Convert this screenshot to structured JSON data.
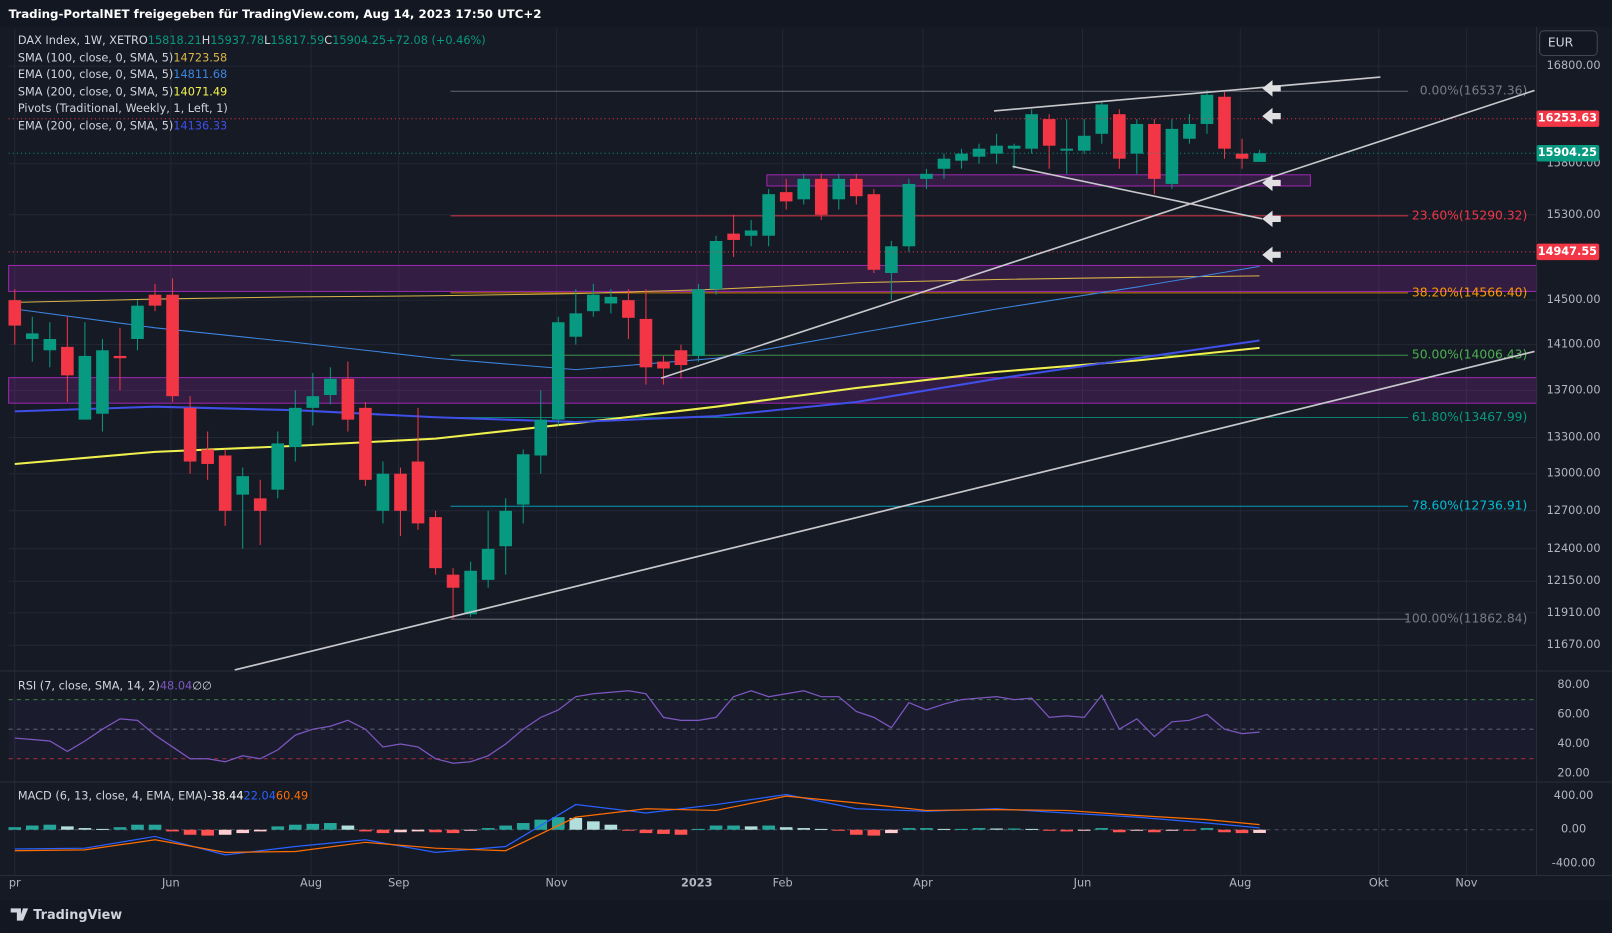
{
  "header": "Trading-PortalNET freigegeben für TradingView.com, Aug 14, 2023 17:50 UTC+2",
  "currency_button": "EUR",
  "footer_logo": "TradingView",
  "chart_data": [
    {
      "type": "candlestick",
      "symbol": "DAX Index, 1W, XETR",
      "ohlc_legend": [
        {
          "label": "O",
          "value": 15818.21
        },
        {
          "label": "H",
          "value": 15937.78
        },
        {
          "label": "L",
          "value": 15817.59
        },
        {
          "label": "C",
          "value": 15904.25
        }
      ],
      "change": "+72.08 (+0.46%)",
      "up_color": "#089981",
      "down_color": "#f23645",
      "log": true,
      "ylim": [
        11490,
        17200
      ],
      "yticks": [
        {
          "value": 16800,
          "label": "16800.00"
        },
        {
          "value": 15800,
          "label": "15800.00"
        },
        {
          "value": 15300,
          "label": "15300.00"
        },
        {
          "value": 14500,
          "label": "14500.00"
        },
        {
          "value": 14100,
          "label": "14100.00"
        },
        {
          "value": 13700,
          "label": "13700.00"
        },
        {
          "value": 13300,
          "label": "13300.00"
        },
        {
          "value": 13000,
          "label": "13000.00"
        },
        {
          "value": 12700,
          "label": "12700.00"
        },
        {
          "value": 12400,
          "label": "12400.00"
        },
        {
          "value": 12150,
          "label": "12150.00"
        },
        {
          "value": 11910,
          "label": "11910.00"
        },
        {
          "value": 11670,
          "label": "11670.00"
        }
      ],
      "xlim": [
        -0.35,
        86.8
      ],
      "xticks": [
        {
          "value": 0,
          "label": "pr"
        },
        {
          "value": 8.9,
          "label": "Jun"
        },
        {
          "value": 16.9,
          "label": "Aug"
        },
        {
          "value": 21.9,
          "label": "Sep"
        },
        {
          "value": 30.9,
          "label": "Nov"
        },
        {
          "value": 38.9,
          "label": "2023"
        },
        {
          "value": 43.8,
          "label": "Feb"
        },
        {
          "value": 51.8,
          "label": "Apr"
        },
        {
          "value": 60.9,
          "label": "Jun"
        },
        {
          "value": 69.9,
          "label": "Aug"
        },
        {
          "value": 77.8,
          "label": "Okt"
        },
        {
          "value": 82.8,
          "label": "Nov"
        }
      ],
      "open": [
        14500,
        14150,
        14050,
        14080,
        13450,
        13500,
        14000,
        14150,
        14550,
        14550,
        13550,
        13200,
        13150,
        12830,
        12800,
        12870,
        13220,
        13550,
        13660,
        13800,
        13550,
        12700,
        13000,
        13100,
        12650,
        12200,
        11900,
        12160,
        12420,
        12750,
        13150,
        13450,
        14170,
        14400,
        14470,
        14500,
        14330,
        13950,
        14050,
        14000,
        14600,
        15120,
        15100,
        15100,
        15520,
        15450,
        15650,
        15450,
        15650,
        15500,
        14750,
        15000,
        15650,
        15750,
        15830,
        15870,
        15900,
        15950,
        15950,
        16250,
        15930,
        15930,
        16100,
        16300,
        15900,
        16200,
        15600,
        16050,
        16200,
        16480,
        15900,
        15818.21
      ],
      "high": [
        14600,
        14350,
        14300,
        14350,
        14300,
        14150,
        14250,
        14500,
        14650,
        14700,
        13650,
        13350,
        13200,
        13050,
        12950,
        13350,
        13700,
        13850,
        13900,
        13950,
        13600,
        13100,
        13050,
        13550,
        12700,
        12250,
        12300,
        12700,
        12800,
        13200,
        13700,
        14350,
        14600,
        14650,
        14600,
        14600,
        14600,
        14000,
        14100,
        14650,
        15100,
        15300,
        15250,
        15550,
        15650,
        15700,
        15700,
        15700,
        15700,
        15550,
        15050,
        15650,
        15750,
        15900,
        15950,
        16000,
        16100,
        16000,
        16350,
        16300,
        16250,
        16250,
        16420,
        16350,
        16250,
        16250,
        16250,
        16300,
        16550,
        16530,
        16050,
        15937.78
      ],
      "low": [
        14100,
        13950,
        13900,
        13600,
        13450,
        13350,
        13700,
        14050,
        14400,
        13600,
        13000,
        12950,
        12580,
        12400,
        12430,
        12800,
        13100,
        13400,
        13580,
        13350,
        12900,
        12600,
        12500,
        12550,
        12200,
        11860,
        11880,
        12100,
        12200,
        12600,
        13000,
        13400,
        14100,
        14350,
        14380,
        14150,
        13750,
        13750,
        13800,
        13950,
        14550,
        14900,
        15000,
        15000,
        15350,
        15400,
        15250,
        15350,
        15400,
        14750,
        14500,
        14950,
        15550,
        15650,
        15750,
        15800,
        15800,
        15750,
        15900,
        15750,
        15700,
        15900,
        16000,
        15750,
        15700,
        15500,
        15550,
        16000,
        16100,
        15850,
        15750,
        15817.59
      ],
      "close": [
        14270,
        14200,
        14150,
        13830,
        14000,
        14050,
        13980,
        14450,
        14450,
        13650,
        13100,
        13080,
        12700,
        12980,
        12700,
        13250,
        13550,
        13650,
        13800,
        13450,
        12950,
        13000,
        12700,
        12600,
        12250,
        12100,
        12230,
        12400,
        12700,
        13160,
        13450,
        14300,
        14380,
        14550,
        14530,
        14340,
        13900,
        13890,
        13920,
        14600,
        15050,
        15060,
        15150,
        15500,
        15430,
        15650,
        15300,
        15650,
        15480,
        14780,
        15000,
        15600,
        15700,
        15850,
        15900,
        15950,
        15980,
        15980,
        16300,
        15980,
        15950,
        16080,
        16400,
        15850,
        16200,
        15650,
        16150,
        16200,
        16500,
        15950,
        15850,
        15904.25
      ],
      "series": [
        {
          "name": "SMA (100, close, 0, SMA, 5)",
          "color": "#d9b44a",
          "x": [
            0,
            8,
            16,
            24,
            32,
            40,
            48,
            56,
            64,
            71
          ],
          "values": [
            14480,
            14510,
            14530,
            14540,
            14560,
            14600,
            14660,
            14690,
            14710,
            14723.58
          ]
        },
        {
          "name": "EMA (100, close, 0, SMA, 5)",
          "color": "#3d85e0",
          "x": [
            0,
            8,
            16,
            24,
            32,
            40,
            48,
            56,
            64,
            71
          ],
          "values": [
            14420,
            14250,
            14120,
            13980,
            13880,
            13980,
            14200,
            14420,
            14620,
            14811.68
          ]
        },
        {
          "name": "SMA (200, close, 0, SMA, 5)",
          "color": "#f0f04e",
          "x": [
            0,
            8,
            16,
            24,
            32,
            40,
            48,
            56,
            64,
            71
          ],
          "values": [
            13080,
            13180,
            13230,
            13290,
            13420,
            13560,
            13720,
            13860,
            13960,
            14071.49
          ]
        },
        {
          "name": "EMA (200, close, 0, SMA, 5)",
          "color": "#3f4fe8",
          "x": [
            0,
            8,
            16,
            24,
            32,
            40,
            48,
            56,
            64,
            71
          ],
          "values": [
            13520,
            13560,
            13530,
            13470,
            13430,
            13480,
            13600,
            13800,
            13980,
            14136.33
          ]
        }
      ],
      "pivots_label": "Pivots (Traditional, Weekly, 1, Left, 1)",
      "fib_levels": [
        {
          "value": 16537.36,
          "label": "0.00%(16537.36)",
          "color": "#787b86"
        },
        {
          "value": 15290.32,
          "label": "23.60%(15290.32)",
          "color": "#f23645"
        },
        {
          "value": 14566.4,
          "label": "38.20%(14566.40)",
          "color": "#ff9800"
        },
        {
          "value": 14006.43,
          "label": "50.00%(14006.43)",
          "color": "#4caf50"
        },
        {
          "value": 13467.99,
          "label": "61.80%(13467.99)",
          "color": "#089981"
        },
        {
          "value": 12736.91,
          "label": "78.60%(12736.91)",
          "color": "#00bcd4"
        },
        {
          "value": 11862.84,
          "label": "100.00%(11862.84)",
          "color": "#787b86"
        }
      ],
      "price_labels": [
        {
          "value": 16253.63,
          "color": "#f23645"
        },
        {
          "value": 14947.55,
          "color": "#f23645"
        }
      ],
      "last_price_color": "#089981",
      "zones": [
        {
          "range": [
            15580,
            15690
          ],
          "x": [
            42.9,
            73.9
          ]
        },
        {
          "range": [
            14580,
            14820
          ]
        },
        {
          "range": [
            13590,
            13810
          ]
        }
      ]
    },
    {
      "type": "line",
      "title": "RSI (7, close, SMA, 14, 2)",
      "color": "#7e57c2",
      "na_values": [
        "∅",
        "∅"
      ],
      "values": [
        44,
        43,
        42,
        35,
        42,
        50,
        57,
        56,
        46,
        38,
        30,
        30,
        28,
        32,
        30,
        36,
        46,
        50,
        52,
        56,
        50,
        38,
        40,
        38,
        30,
        27,
        28,
        32,
        40,
        50,
        58,
        63,
        72,
        74,
        75,
        76,
        74,
        58,
        56,
        56,
        58,
        72,
        76,
        72,
        74,
        76,
        72,
        72,
        62,
        58,
        51,
        68,
        63,
        67,
        70,
        71,
        72,
        70,
        71,
        58,
        59,
        58,
        73,
        50,
        57,
        45,
        55,
        56,
        60,
        50,
        47,
        48.04
      ],
      "levels": [
        70,
        50,
        30
      ],
      "ylim": [
        15,
        88
      ],
      "yticks": [
        {
          "value": 80,
          "label": "80.00"
        },
        {
          "value": 60,
          "label": "60.00"
        },
        {
          "value": 40,
          "label": "40.00"
        },
        {
          "value": 20,
          "label": "20.00"
        }
      ]
    },
    {
      "type": "macd",
      "title": "MACD (6, 13, close, 4, EMA, EMA)",
      "histogram": [
        30,
        50,
        60,
        40,
        20,
        10,
        30,
        60,
        60,
        -20,
        -60,
        -70,
        -60,
        -40,
        -20,
        40,
        60,
        70,
        80,
        50,
        -20,
        -40,
        -30,
        -20,
        -30,
        -40,
        -10,
        20,
        50,
        80,
        120,
        150,
        140,
        100,
        60,
        -10,
        -40,
        -50,
        -60,
        10,
        50,
        50,
        40,
        50,
        30,
        20,
        10,
        -10,
        -60,
        -70,
        -40,
        20,
        20,
        10,
        10,
        20,
        15,
        15,
        10,
        -10,
        -20,
        -10,
        20,
        -30,
        -10,
        -30,
        -10,
        -10,
        20,
        -30,
        -40,
        -38.44
      ],
      "series": [
        {
          "name": "MACD",
          "color": "#2962ff",
          "x": [
            0,
            4,
            8,
            12,
            16,
            20,
            24,
            28,
            32,
            36,
            40,
            44,
            48,
            52,
            56,
            60,
            64,
            68,
            71
          ],
          "values": [
            -230,
            -220,
            -80,
            -300,
            -200,
            -120,
            -270,
            -200,
            300,
            200,
            300,
            420,
            250,
            220,
            250,
            200,
            150,
            80,
            22.04
          ]
        },
        {
          "name": "Signal",
          "color": "#ff6d00",
          "x": [
            0,
            4,
            8,
            12,
            16,
            20,
            24,
            28,
            32,
            36,
            40,
            44,
            48,
            52,
            56,
            60,
            64,
            68,
            71
          ],
          "values": [
            -250,
            -240,
            -120,
            -270,
            -260,
            -150,
            -220,
            -250,
            150,
            250,
            230,
            400,
            320,
            230,
            240,
            230,
            170,
            120,
            60.49
          ]
        }
      ],
      "ylim": [
        -545,
        545
      ],
      "yticks": [
        {
          "value": 400,
          "label": "400.00"
        },
        {
          "value": 0,
          "label": "0.00"
        },
        {
          "value": -400,
          "label": "-400.00"
        }
      ]
    }
  ]
}
